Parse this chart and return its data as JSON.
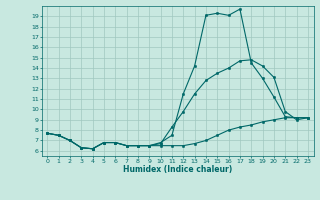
{
  "xlabel": "Humidex (Indice chaleur)",
  "bg_color": "#c8e8e0",
  "grid_color": "#a0c8c0",
  "line_color": "#006868",
  "xlim": [
    -0.5,
    23.5
  ],
  "ylim": [
    5.5,
    20
  ],
  "yticks": [
    6,
    7,
    8,
    9,
    10,
    11,
    12,
    13,
    14,
    15,
    16,
    17,
    18,
    19
  ],
  "xticks": [
    0,
    1,
    2,
    3,
    4,
    5,
    6,
    7,
    8,
    9,
    10,
    11,
    12,
    13,
    14,
    15,
    16,
    17,
    18,
    19,
    20,
    21,
    22,
    23
  ],
  "line1_x": [
    0,
    1,
    2,
    3,
    4,
    5,
    6,
    7,
    8,
    9,
    10,
    11,
    12,
    13,
    14,
    15,
    16,
    17,
    18,
    19,
    20,
    21,
    22,
    23
  ],
  "line1_y": [
    7.7,
    7.5,
    7.0,
    6.3,
    6.2,
    6.8,
    6.8,
    6.5,
    6.5,
    6.5,
    6.5,
    6.5,
    6.5,
    6.7,
    7.0,
    7.5,
    8.0,
    8.3,
    8.5,
    8.8,
    9.0,
    9.2,
    9.2,
    9.2
  ],
  "line2_x": [
    0,
    1,
    2,
    3,
    4,
    5,
    6,
    7,
    8,
    9,
    10,
    11,
    12,
    13,
    14,
    15,
    16,
    17,
    18,
    19,
    20,
    21,
    22,
    23
  ],
  "line2_y": [
    7.7,
    7.5,
    7.0,
    6.3,
    6.2,
    6.8,
    6.8,
    6.5,
    6.5,
    6.5,
    6.8,
    7.5,
    11.5,
    14.2,
    19.1,
    19.3,
    19.1,
    19.7,
    14.5,
    13.0,
    11.2,
    9.3,
    9.2,
    9.2
  ],
  "line3_x": [
    0,
    1,
    2,
    3,
    4,
    5,
    6,
    7,
    8,
    9,
    10,
    11,
    12,
    13,
    14,
    15,
    16,
    17,
    18,
    19,
    20,
    21,
    22,
    23
  ],
  "line3_y": [
    7.7,
    7.5,
    7.0,
    6.3,
    6.2,
    6.8,
    6.8,
    6.5,
    6.5,
    6.5,
    6.7,
    8.3,
    9.8,
    11.5,
    12.8,
    13.5,
    14.0,
    14.7,
    14.8,
    14.2,
    13.1,
    9.8,
    9.0,
    9.2
  ]
}
